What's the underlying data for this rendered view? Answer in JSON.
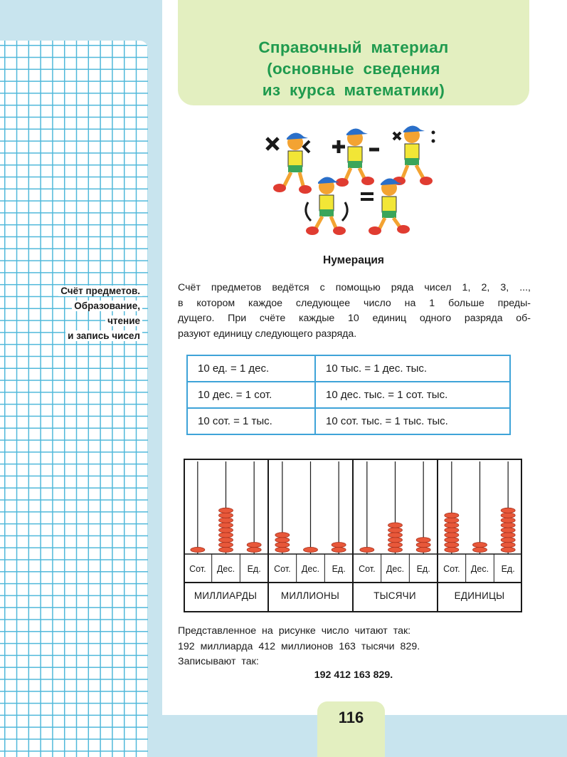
{
  "header": {
    "title_line1": "Справочный материал",
    "title_line2": "(основные сведения",
    "title_line3": "из курса математики)"
  },
  "margin_note": {
    "line1": "Счёт предметов.",
    "line2": "Образование,",
    "line3": "чтение",
    "line4": "и запись чисел"
  },
  "section": {
    "title": "Нумерация"
  },
  "paragraph": {
    "lines": [
      "Счёт предметов ведётся с помощью ряда чисел 1, 2, 3, ...,",
      "в котором каждое следующее число на 1 больше преды-",
      "дущего. При счёте каждые 10 единиц одного разряда об-",
      "разуют единицу следующего разряда."
    ]
  },
  "units_table": {
    "rows": [
      [
        "10 ед. = 1 дес.",
        "10 тыс. = 1 дес. тыс."
      ],
      [
        "10 дес. = 1 сот.",
        "10 дес. тыс. = 1 сот. тыс."
      ],
      [
        "10 сот. = 1 тыс.",
        "10 сот. тыс. = 1 тыс. тыс."
      ]
    ]
  },
  "abacus": {
    "place_labels": [
      "Сот.",
      "Дес.",
      "Ед.",
      "Сот.",
      "Дес.",
      "Ед.",
      "Сот.",
      "Дес.",
      "Ед.",
      "Сот.",
      "Дес.",
      "Ед."
    ],
    "groups": [
      "МИЛЛИАРДЫ",
      "МИЛЛИОНЫ",
      "ТЫСЯЧИ",
      "ЕДИНИЦЫ"
    ],
    "bead_counts": [
      1,
      9,
      2,
      4,
      1,
      2,
      1,
      6,
      3,
      8,
      2,
      9
    ],
    "bead_color": "#e8583a",
    "frame_color": "#1a1a1a"
  },
  "bottom": {
    "line1": "Представленное на рисунке число читают так:",
    "line2": "192 миллиарда 412 миллионов 163 тысячи 829.",
    "line3": "Записывают так:",
    "number": "192 412 163 829."
  },
  "page_number": "116",
  "colors": {
    "title_green": "#1f9a4e",
    "header_bg": "#e3efc0",
    "grid_blue": "#4fb8da",
    "table_border": "#3ea3d8",
    "side_bg": "#c8e4ee"
  }
}
